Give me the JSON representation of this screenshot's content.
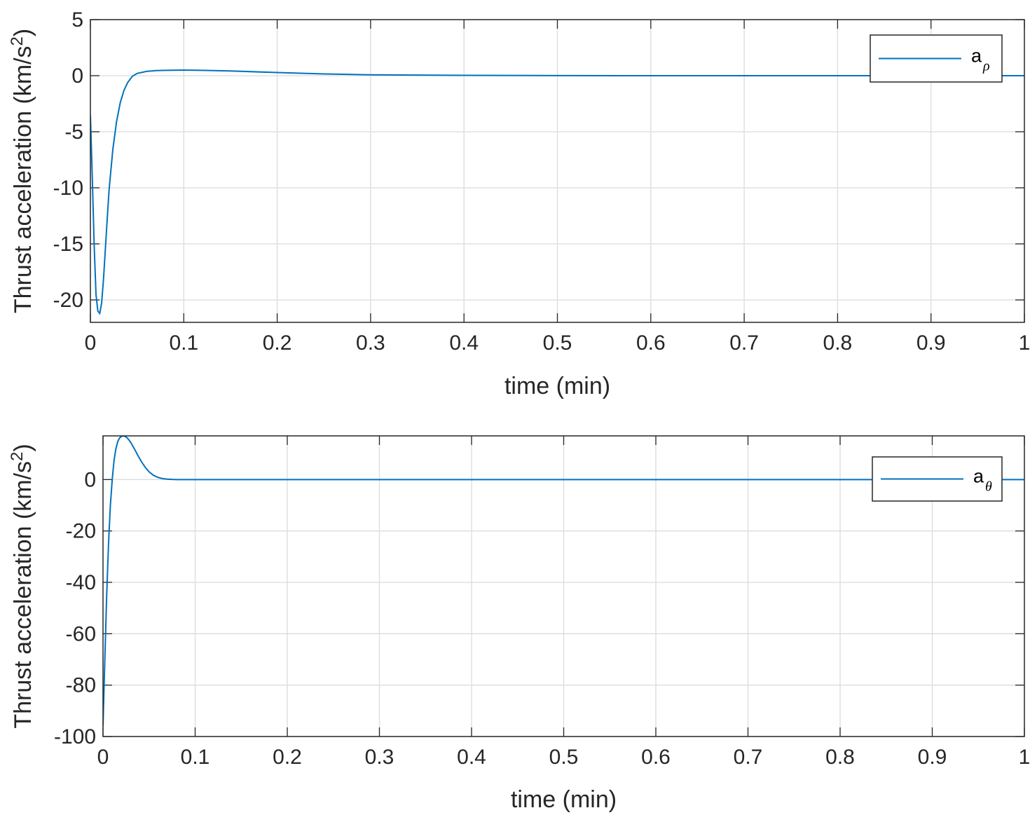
{
  "chart_data": [
    {
      "type": "line",
      "xlabel": "time (min)",
      "ylabel_main": "Thrust acceleration (km/s",
      "ylabel_sup": "2",
      "ylabel_close": ")",
      "xlim": [
        0,
        1
      ],
      "ylim": [
        -22,
        5
      ],
      "xticks": [
        0,
        0.1,
        0.2,
        0.3,
        0.4,
        0.5,
        0.6,
        0.7,
        0.8,
        0.9,
        1
      ],
      "xtick_labels": [
        "0",
        "0.1",
        "0.2",
        "0.3",
        "0.4",
        "0.5",
        "0.6",
        "0.7",
        "0.8",
        "0.9",
        "1"
      ],
      "yticks": [
        -20,
        -15,
        -10,
        -5,
        0,
        5
      ],
      "ytick_labels": [
        "-20",
        "-15",
        "-10",
        "-5",
        "0",
        "5"
      ],
      "grid": true,
      "legend_position": "top-right",
      "series": [
        {
          "legend_main": "a",
          "legend_sub": "ρ",
          "color": "#0072BD",
          "x": [
            0,
            0.002,
            0.004,
            0.006,
            0.008,
            0.01,
            0.012,
            0.014,
            0.016,
            0.018,
            0.02,
            0.024,
            0.028,
            0.032,
            0.036,
            0.04,
            0.045,
            0.05,
            0.06,
            0.07,
            0.08,
            0.1,
            0.12,
            0.15,
            0.2,
            0.25,
            0.3,
            0.4,
            0.5,
            0.6,
            0.7,
            0.8,
            0.9,
            1.0
          ],
          "y": [
            -3.5,
            -9,
            -15,
            -19.5,
            -21.0,
            -21.2,
            -20.3,
            -18.2,
            -15.5,
            -12.8,
            -10.2,
            -6.6,
            -4.1,
            -2.4,
            -1.3,
            -0.6,
            -0.05,
            0.2,
            0.38,
            0.45,
            0.48,
            0.5,
            0.48,
            0.42,
            0.28,
            0.16,
            0.08,
            0.03,
            0.01,
            0.0,
            0.0,
            0.0,
            0.0,
            0.0
          ]
        }
      ]
    },
    {
      "type": "line",
      "xlabel": "time (min)",
      "ylabel_main": "Thrust acceleration (km/s",
      "ylabel_sup": "2",
      "ylabel_close": ")",
      "xlim": [
        0,
        1
      ],
      "ylim": [
        -100,
        17
      ],
      "xticks": [
        0,
        0.1,
        0.2,
        0.3,
        0.4,
        0.5,
        0.6,
        0.7,
        0.8,
        0.9,
        1
      ],
      "xtick_labels": [
        "0",
        "0.1",
        "0.2",
        "0.3",
        "0.4",
        "0.5",
        "0.6",
        "0.7",
        "0.8",
        "0.9",
        "1"
      ],
      "yticks": [
        -100,
        -80,
        -60,
        -40,
        -20,
        0
      ],
      "ytick_labels": [
        "-100",
        "-80",
        "-60",
        "-40",
        "-20",
        "0"
      ],
      "grid": true,
      "legend_position": "top-right",
      "series": [
        {
          "legend_main": "a",
          "legend_sub": "θ",
          "color": "#0072BD",
          "x": [
            0,
            0.002,
            0.004,
            0.006,
            0.008,
            0.01,
            0.012,
            0.014,
            0.016,
            0.018,
            0.02,
            0.022,
            0.024,
            0.026,
            0.028,
            0.03,
            0.034,
            0.038,
            0.042,
            0.046,
            0.05,
            0.055,
            0.06,
            0.065,
            0.07,
            0.075,
            0.08,
            0.09,
            0.1,
            0.15,
            0.2,
            0.3,
            0.4,
            0.5,
            0.6,
            0.7,
            0.8,
            0.9,
            1.0
          ],
          "y": [
            -96,
            -70,
            -45,
            -25,
            -10,
            0,
            7.5,
            12,
            14.8,
            16.2,
            16.8,
            17,
            16.8,
            16.3,
            15.5,
            14.5,
            12,
            9.3,
            6.8,
            4.7,
            3.0,
            1.6,
            0.8,
            0.35,
            0.15,
            0.05,
            0,
            0,
            0,
            0,
            0,
            0,
            0,
            0,
            0,
            0,
            0,
            0,
            0
          ]
        }
      ]
    }
  ]
}
